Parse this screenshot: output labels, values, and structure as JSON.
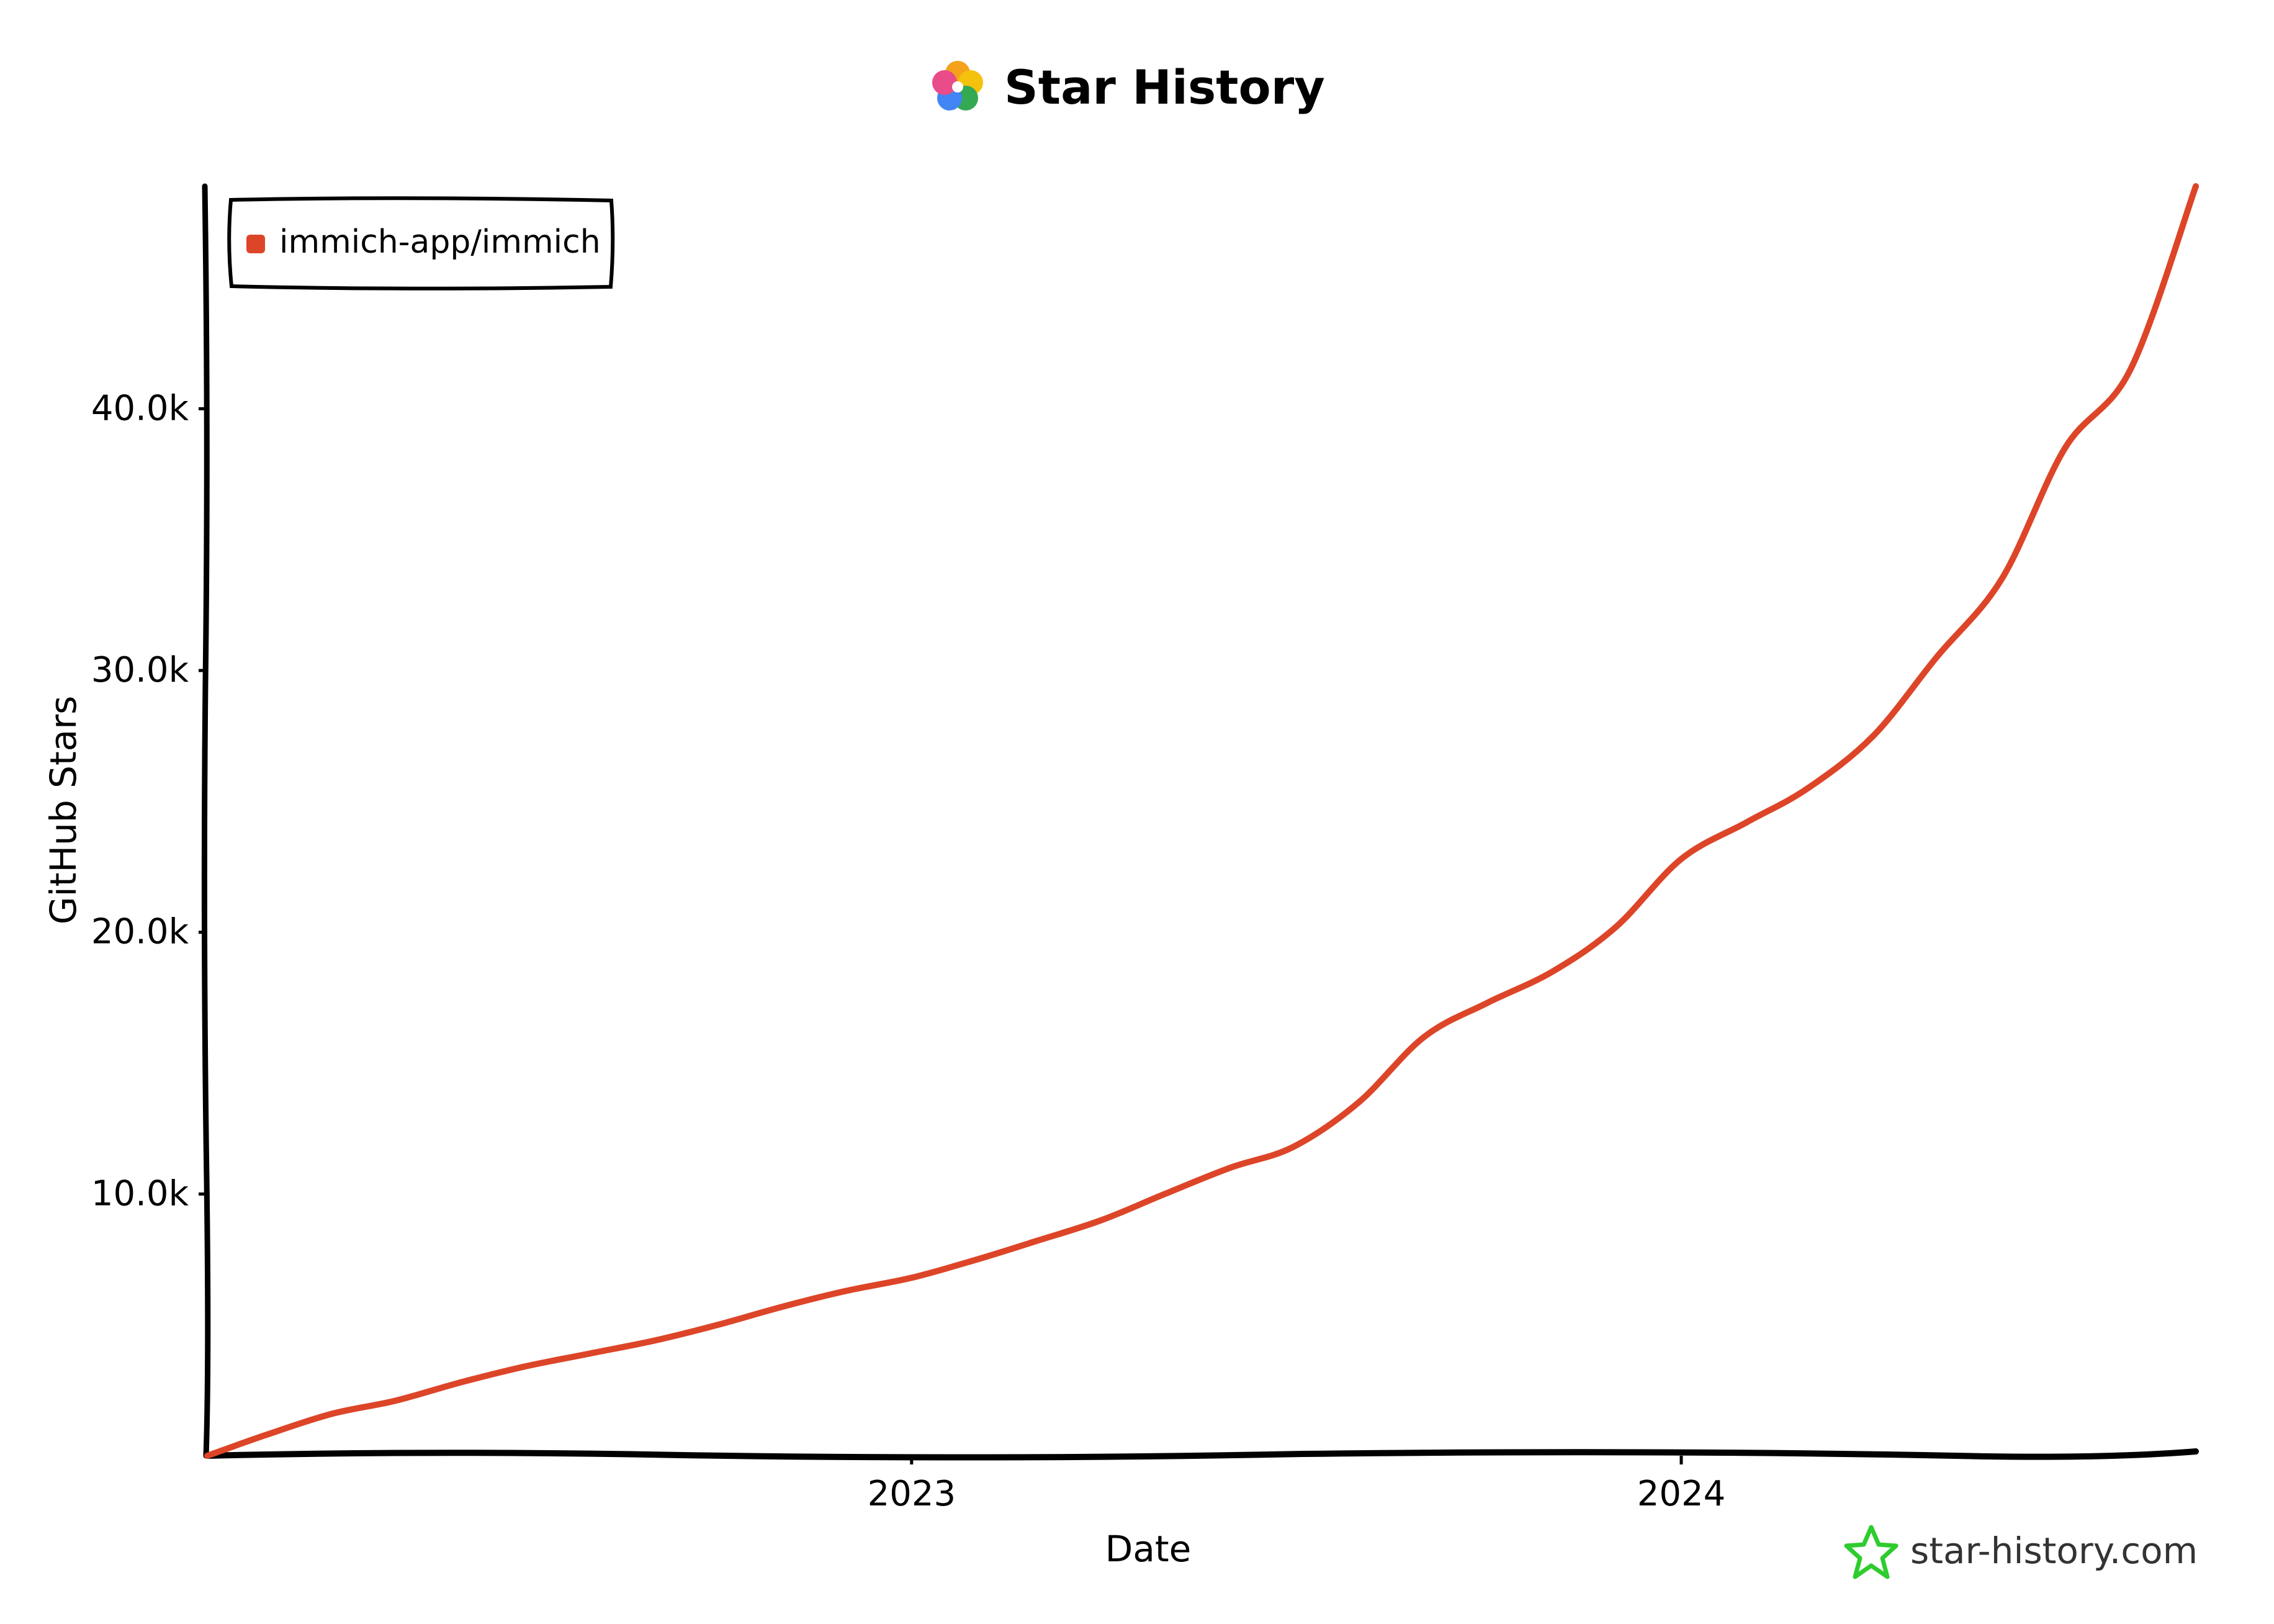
{
  "page": {
    "title": "Star History",
    "watermark": "star-history.com"
  },
  "colors": {
    "series": "#dd4528",
    "axis": "#000000",
    "background": "#ffffff",
    "watermark_icon": "#2ecc2e"
  },
  "icons": {
    "title_logo": "star-history-logo-icon",
    "watermark_logo": "star-outline-icon"
  },
  "chart_data": {
    "type": "line",
    "title": "Star History",
    "xlabel": "Date",
    "ylabel": "GitHub Stars",
    "xlim": [
      "2022-02-01",
      "2024-09-01"
    ],
    "ylim": [
      0,
      48500
    ],
    "x_ticks": [
      "2023-01-01",
      "2024-01-01"
    ],
    "x_tick_labels": [
      "2023",
      "2024"
    ],
    "y_ticks": [
      10000,
      20000,
      30000,
      40000
    ],
    "y_tick_labels": [
      "10.0k",
      "20.0k",
      "30.0k",
      "40.0k"
    ],
    "legend_position": "top-left",
    "grid": false,
    "series": [
      {
        "name": "immich-app/immich",
        "color": "#dd4528",
        "points": [
          [
            "2022-02-01",
            0
          ],
          [
            "2022-03-01",
            800
          ],
          [
            "2022-04-01",
            1600
          ],
          [
            "2022-05-01",
            2100
          ],
          [
            "2022-06-01",
            2800
          ],
          [
            "2022-07-01",
            3400
          ],
          [
            "2022-08-01",
            3900
          ],
          [
            "2022-09-01",
            4400
          ],
          [
            "2022-10-01",
            5000
          ],
          [
            "2022-11-01",
            5700
          ],
          [
            "2022-12-01",
            6300
          ],
          [
            "2023-01-01",
            6800
          ],
          [
            "2023-02-01",
            7500
          ],
          [
            "2023-03-01",
            8200
          ],
          [
            "2023-04-01",
            9000
          ],
          [
            "2023-05-01",
            10000
          ],
          [
            "2023-06-01",
            11000
          ],
          [
            "2023-07-01",
            11800
          ],
          [
            "2023-08-01",
            13500
          ],
          [
            "2023-09-01",
            16000
          ],
          [
            "2023-10-01",
            17300
          ],
          [
            "2023-11-01",
            18500
          ],
          [
            "2023-12-01",
            20200
          ],
          [
            "2024-01-01",
            22800
          ],
          [
            "2024-02-01",
            24200
          ],
          [
            "2024-03-01",
            25500
          ],
          [
            "2024-04-01",
            27500
          ],
          [
            "2024-05-01",
            30500
          ],
          [
            "2024-06-01",
            33500
          ],
          [
            "2024-07-01",
            38500
          ],
          [
            "2024-08-01",
            41500
          ],
          [
            "2024-09-01",
            48500
          ]
        ]
      }
    ]
  }
}
